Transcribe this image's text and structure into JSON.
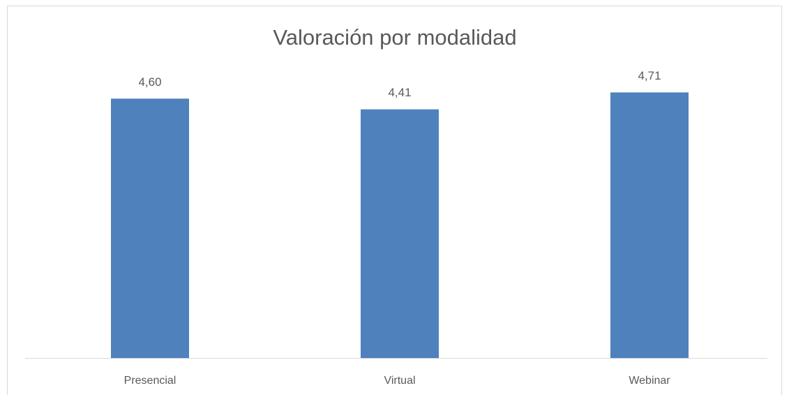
{
  "chart_data": {
    "type": "bar",
    "title": "Valoración por modalidad",
    "categories": [
      "Presencial",
      "Virtual",
      "Webinar"
    ],
    "values": [
      4.6,
      4.41,
      4.71
    ],
    "value_labels": [
      "4,60",
      "4,41",
      "4,71"
    ],
    "color": "#4f81bd",
    "ylim": [
      0,
      5
    ]
  }
}
